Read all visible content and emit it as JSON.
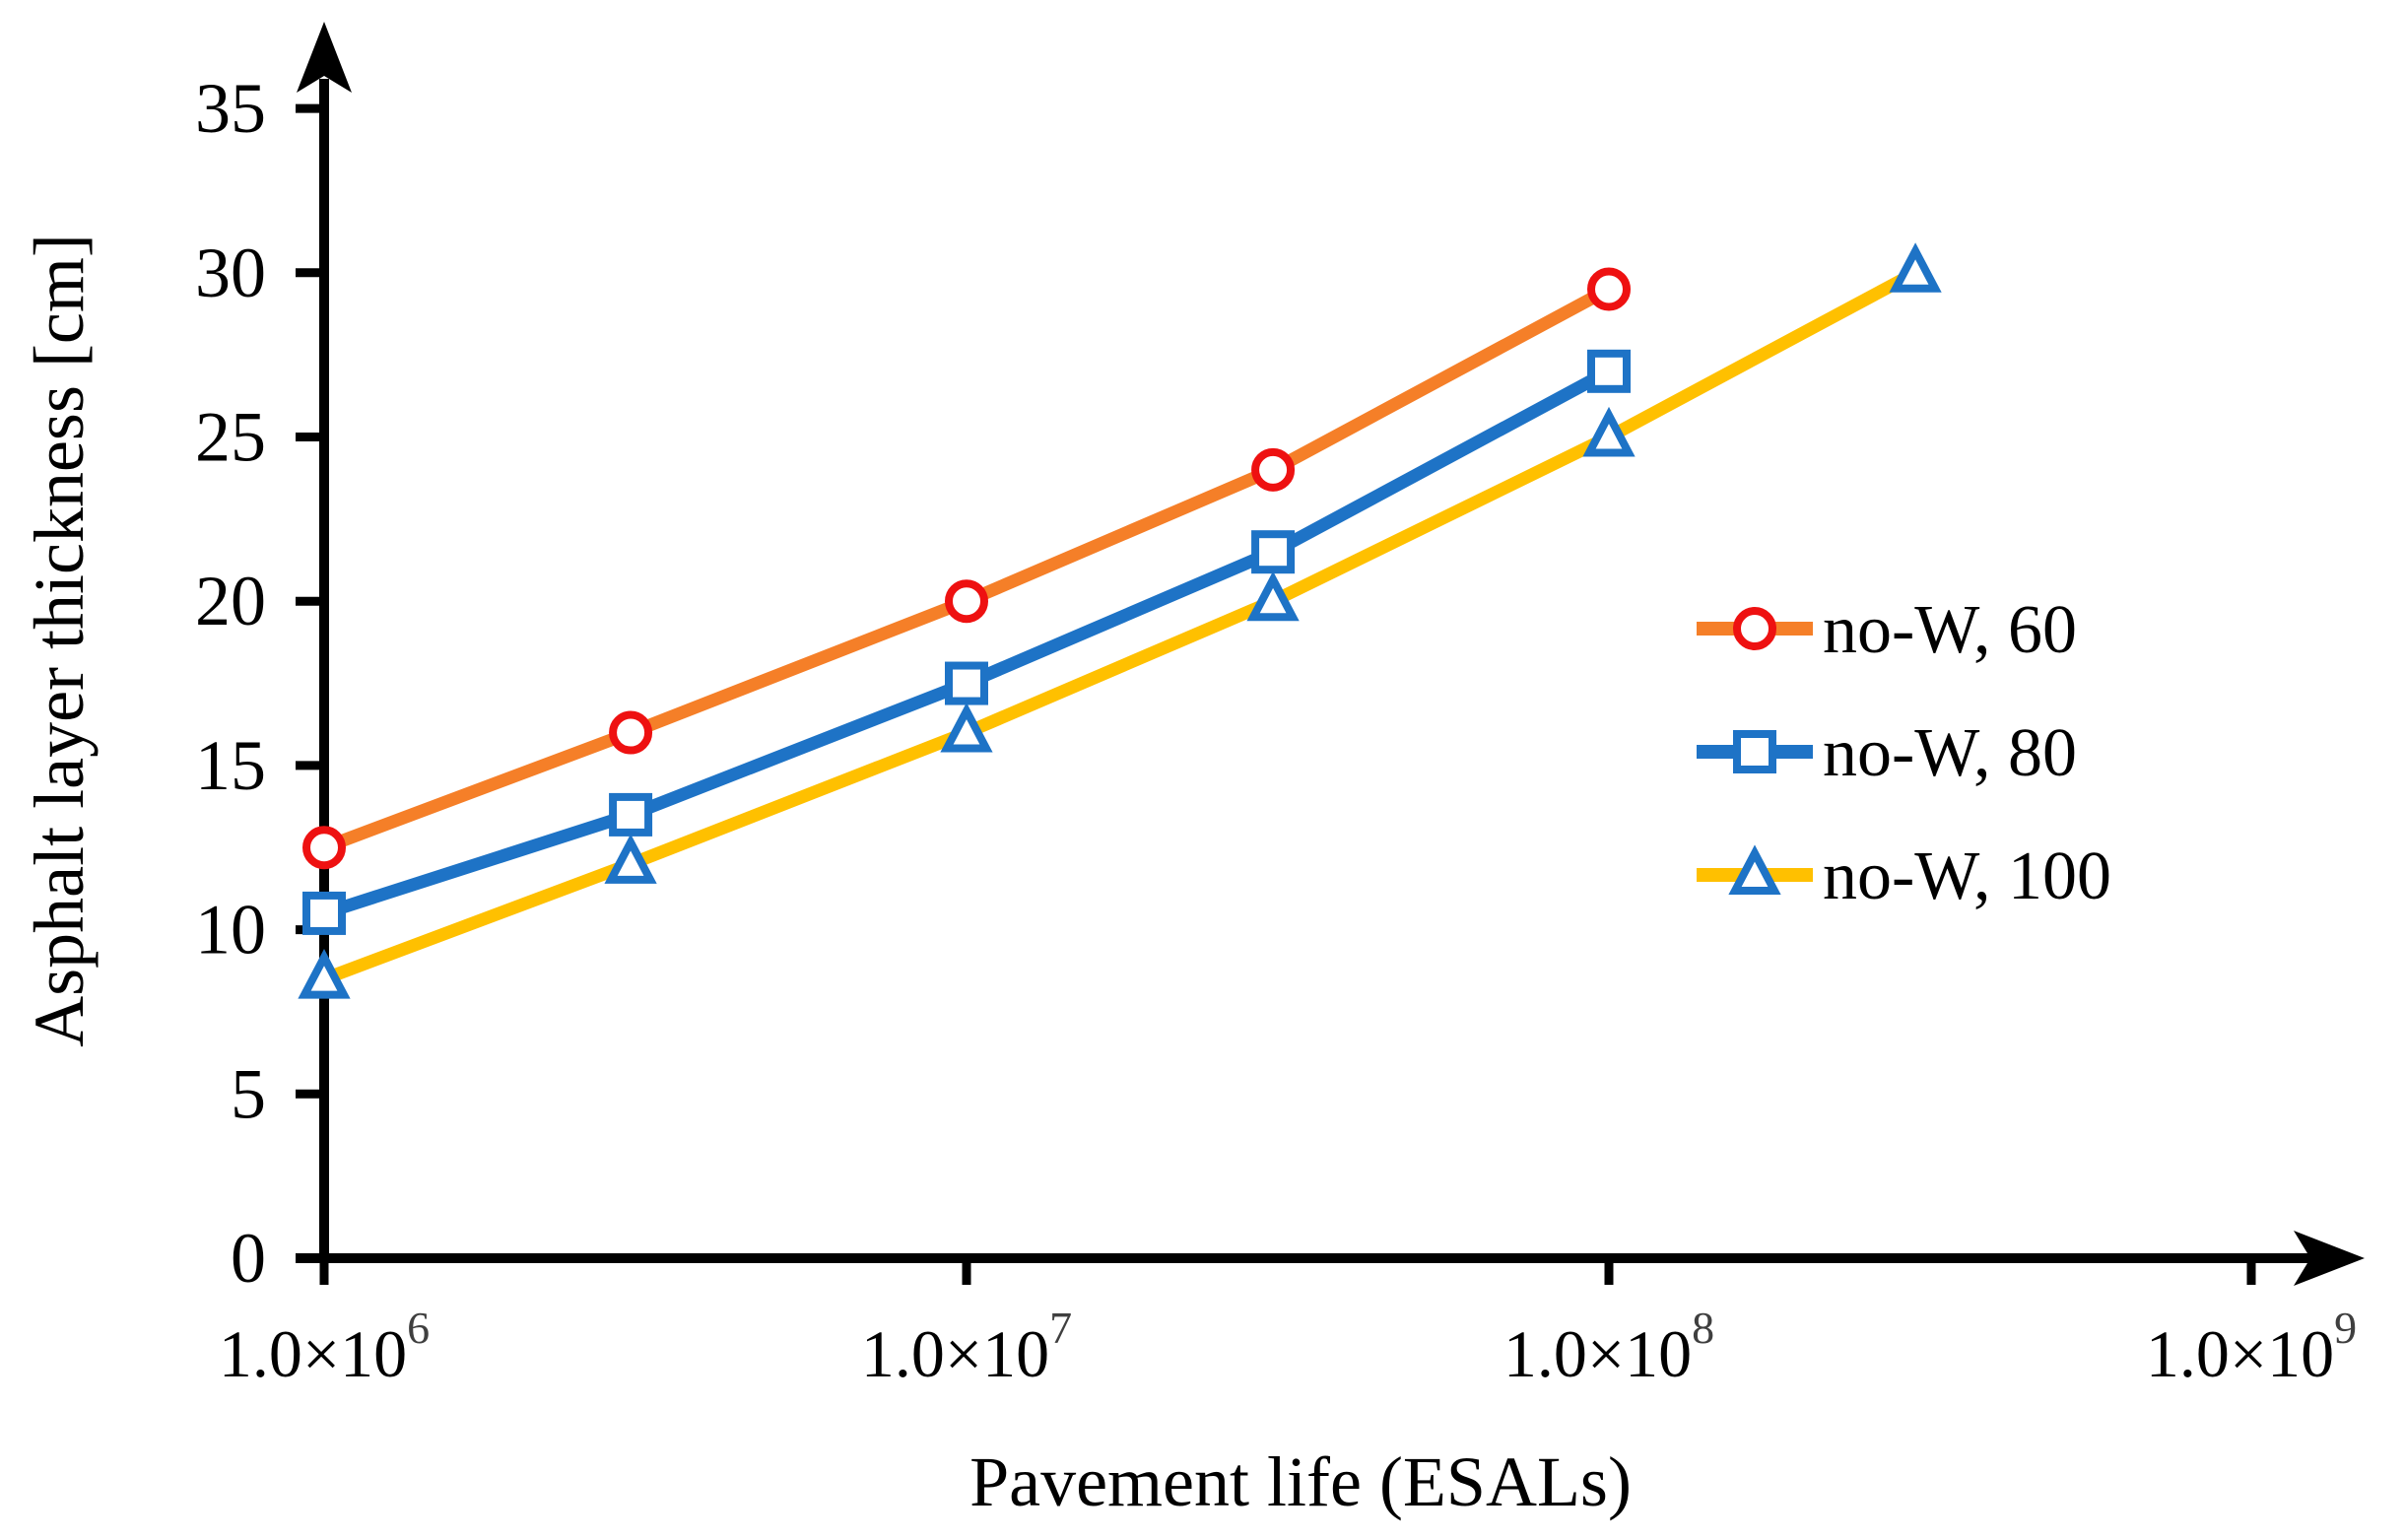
{
  "figure": {
    "background": "#ffffff"
  },
  "chart_data": {
    "type": "line",
    "title": "",
    "xlabel": "Pavement life (ESALs)",
    "ylabel": "Asphalt layer thickness [cm]",
    "x_scale": "log10",
    "xlim": [
      1000000,
      1000000000
    ],
    "ylim": [
      0,
      35
    ],
    "grid": false,
    "legend_position": "middle-right",
    "axis_color": "#000000",
    "text_color": "#000000",
    "exponent_color": "#3f3f3f",
    "y_ticks": [
      0,
      5,
      10,
      15,
      20,
      25,
      30,
      35
    ],
    "x_ticks": [
      {
        "value": 1000000,
        "mantissa": "1.0×10",
        "exponent": "6"
      },
      {
        "value": 10000000,
        "mantissa": "1.0×10",
        "exponent": "7"
      },
      {
        "value": 100000000,
        "mantissa": "1.0×10",
        "exponent": "8"
      },
      {
        "value": 1000000000,
        "mantissa": "1.0×10",
        "exponent": "9"
      }
    ],
    "series": [
      {
        "name": "no-W, 60",
        "line_color": "#f57f28",
        "marker": "circle",
        "marker_color": "#ee1111",
        "marker_fill": "#ffffff",
        "x": [
          1000000,
          3000000,
          10000000,
          30000000,
          100000000
        ],
        "y": [
          12.5,
          16,
          20,
          24,
          29.5
        ]
      },
      {
        "name": "no-W, 80",
        "line_color": "#1e73c6",
        "marker": "square",
        "marker_color": "#1e73c6",
        "marker_fill": "#ffffff",
        "x": [
          1000000,
          3000000,
          10000000,
          30000000,
          100000000
        ],
        "y": [
          10.5,
          13.5,
          17.5,
          21.5,
          27
        ]
      },
      {
        "name": "no-W, 100",
        "line_color": "#ffc000",
        "marker": "triangle",
        "marker_color": "#1e73c6",
        "marker_fill": "#ffffff",
        "x": [
          1000000,
          3000000,
          10000000,
          30000000,
          100000000,
          300000000
        ],
        "y": [
          8.5,
          12,
          16,
          20,
          25,
          30
        ]
      }
    ]
  }
}
